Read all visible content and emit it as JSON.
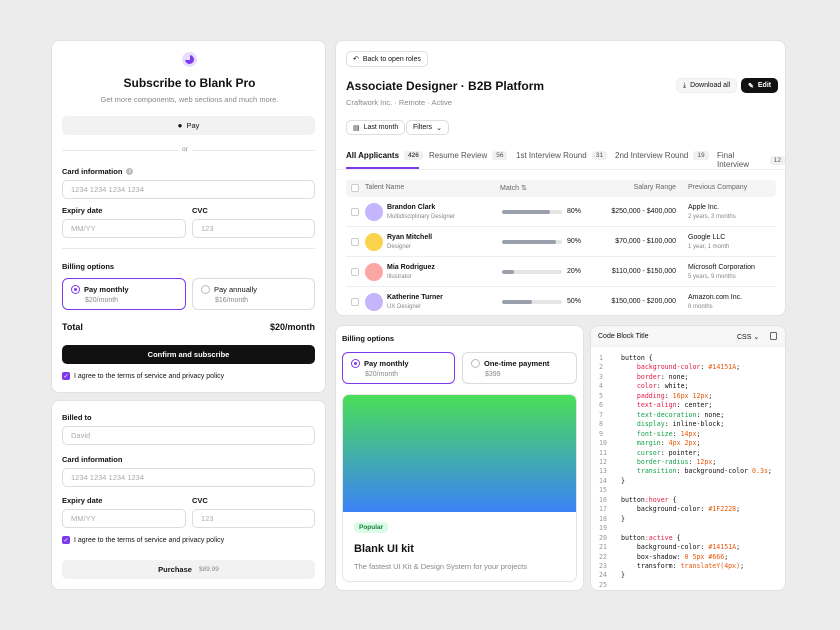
{
  "subscribe": {
    "title": "Subscribe to Blank Pro",
    "subtitle": "Get more components, web sections and much more.",
    "pay_label": "Pay",
    "or": "or",
    "card_info_label": "Card information",
    "card_placeholder": "1234 1234 1234 1234",
    "expiry_label": "Expiry date",
    "expiry_placeholder": "MM/YY",
    "cvc_label": "CVC",
    "cvc_placeholder": "123",
    "billing_label": "Billing options",
    "opt_monthly": "Pay monthly",
    "opt_monthly_price": "$20/month",
    "opt_annually": "Pay annually",
    "opt_annually_price": "$16/month",
    "total_label": "Total",
    "total_value": "$20/month",
    "confirm_button": "Confirm and subscribe",
    "terms": "I agree to the terms of service and privacy policy"
  },
  "purchase": {
    "billed_to_label": "Billed to",
    "billed_to_placeholder": "David",
    "card_info_label": "Card information",
    "card_placeholder": "1234 1234 1234 1234",
    "expiry_label": "Expiry date",
    "expiry_placeholder": "MM/YY",
    "cvc_label": "CVC",
    "cvc_placeholder": "123",
    "terms": "I agree to the terms of service and privacy policy",
    "purchase_label": "Purchase",
    "purchase_price": "$89.99"
  },
  "job": {
    "back": "Back to open roles",
    "title": "Associate Designer · B2B Platform",
    "meta": "Craftwork Inc. · Remote · Active",
    "download": "Download all",
    "edit": "Edit",
    "filter_period": "Last month",
    "filter_filters": "Filters",
    "tabs": [
      {
        "label": "All Applicants",
        "count": "426"
      },
      {
        "label": "Resume Review",
        "count": "56"
      },
      {
        "label": "1st Interview Round",
        "count": "31"
      },
      {
        "label": "2nd Interview Round",
        "count": "19"
      },
      {
        "label": "Final Interview",
        "count": "12"
      }
    ],
    "columns": {
      "talent": "Talent Name",
      "match": "Match",
      "salary": "Salary Range",
      "company": "Previous Company"
    },
    "rows": [
      {
        "name": "Brandon Clark",
        "role": "Multidisciplinary Designer",
        "match": 80,
        "match_label": "80%",
        "salary": "$250,000 - $400,000",
        "company": "Apple Inc.",
        "years": "2 years, 3 months",
        "avatar_color": "#c4b5fd"
      },
      {
        "name": "Ryan Mitchell",
        "role": "Designer",
        "match": 90,
        "match_label": "90%",
        "salary": "$70,000 - $100,000",
        "company": "Google LLC",
        "years": "1 year, 1 month",
        "avatar_color": "#fcd34d"
      },
      {
        "name": "Mia Rodriguez",
        "role": "Illustrator",
        "match": 20,
        "match_label": "20%",
        "salary": "$110,000 - $150,000",
        "company": "Microsoft Corporation",
        "years": "5 years, 9 months",
        "avatar_color": "#fca5a5"
      },
      {
        "name": "Katherine Turner",
        "role": "UX Designer",
        "match": 50,
        "match_label": "50%",
        "salary": "$150,000 - $200,000",
        "company": "Amazon.com Inc.",
        "years": "8 months",
        "avatar_color": "#c4b5fd"
      }
    ]
  },
  "billing2": {
    "label": "Billing options",
    "opt_monthly": "Pay monthly",
    "opt_monthly_price": "$20/month",
    "opt_onetime": "One-time payment",
    "opt_onetime_price": "$399",
    "badge": "Popular",
    "product_title": "Blank UI kit",
    "product_desc": "The fastest UI Kit & Design System for your projects"
  },
  "codeblock": {
    "title": "Code Block Title",
    "lang": "CSS"
  },
  "colors": {
    "accent": "#7c3aed",
    "dark": "#111111"
  }
}
